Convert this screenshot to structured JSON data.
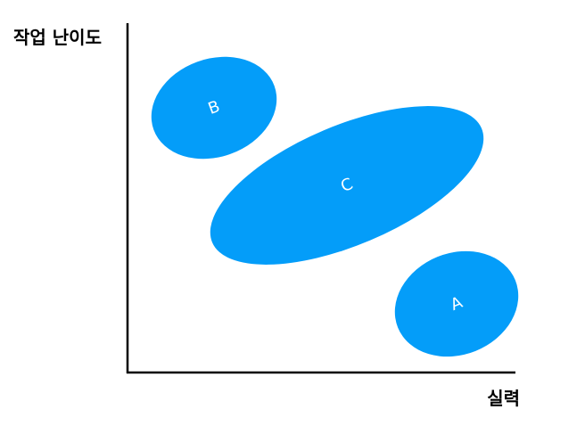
{
  "axes": {
    "y_title": "작업 난이도",
    "x_title": "실력"
  },
  "regions": [
    {
      "label": "B"
    },
    {
      "label": "C"
    },
    {
      "label": "A"
    }
  ],
  "colors": {
    "region_fill": "#049df9",
    "axis_line": "#000000",
    "label_text": "#ffffff"
  }
}
